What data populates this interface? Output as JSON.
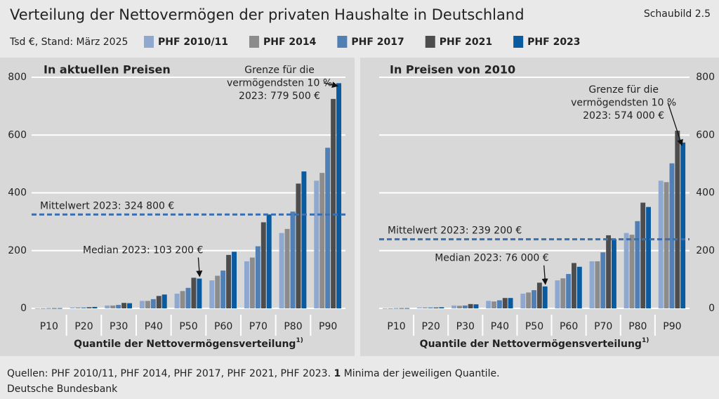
{
  "header": {
    "title": "Verteilung der Nettovermögen der privaten Haushalte in Deutschland",
    "figure_number": "Schaubild 2.5",
    "subtitle": "Tsd €, Stand: März 2025"
  },
  "chart_data": [
    {
      "type": "bar",
      "title": "In aktuellen Preisen",
      "x_label": "Quantile der Nettovermögensverteilung",
      "x_label_note": "1)",
      "categories": [
        "P10",
        "P20",
        "P30",
        "P40",
        "P50",
        "P60",
        "P70",
        "P80",
        "P90"
      ],
      "series": [
        {
          "name": "PHF 2010/11",
          "color": "#8fa8cf",
          "values": [
            0.5,
            3,
            10,
            26,
            51,
            97,
            163,
            261,
            442
          ]
        },
        {
          "name": "PHF 2014",
          "color": "#8c8c8c",
          "values": [
            0.5,
            3,
            10,
            26,
            60,
            113,
            176,
            275,
            469
          ]
        },
        {
          "name": "PHF 2017",
          "color": "#4f7fb5",
          "values": [
            1,
            3,
            12,
            32,
            71,
            131,
            215,
            335,
            556
          ]
        },
        {
          "name": "PHF 2021",
          "color": "#4d4d4d",
          "values": [
            1,
            4,
            19,
            43,
            106,
            185,
            298,
            432,
            725
          ]
        },
        {
          "name": "PHF 2023",
          "color": "#0a5aa0",
          "values": [
            1,
            5,
            18,
            48,
            103.2,
            196,
            325,
            474,
            779.5
          ]
        }
      ],
      "ylim": [
        0,
        800
      ],
      "yticks": [
        0,
        200,
        400,
        600,
        800
      ],
      "ytick_side": "left",
      "grid": true,
      "mean_line": {
        "value": 324.8,
        "label": "Mittelwert 2023: 324 800 €"
      },
      "median_annotation": {
        "value": 103.2,
        "label": "Median 2023: 103 200 €"
      },
      "top_annotation": {
        "value": 779.5,
        "lines": [
          "Grenze für die",
          "vermögendsten 10 %",
          "2023: 779 500 €"
        ]
      }
    },
    {
      "type": "bar",
      "title": "In Preisen von 2010",
      "x_label": "Quantile der Nettovermögensverteilung",
      "x_label_note": "1)",
      "categories": [
        "P10",
        "P20",
        "P30",
        "P40",
        "P50",
        "P60",
        "P70",
        "P80",
        "P90"
      ],
      "series": [
        {
          "name": "PHF 2010/11",
          "color": "#8fa8cf",
          "values": [
            0.5,
            3,
            10,
            26,
            51,
            97,
            163,
            261,
            442
          ]
        },
        {
          "name": "PHF 2014",
          "color": "#8c8c8c",
          "values": [
            0.5,
            3,
            9,
            24,
            55,
            104,
            163,
            255,
            437
          ]
        },
        {
          "name": "PHF 2017",
          "color": "#4f7fb5",
          "values": [
            1,
            3,
            10,
            28,
            63,
            119,
            194,
            302,
            502
          ]
        },
        {
          "name": "PHF 2021",
          "color": "#4d4d4d",
          "values": [
            1,
            3,
            15,
            36,
            89,
            157,
            253,
            366,
            615
          ]
        },
        {
          "name": "PHF 2023",
          "color": "#0a5aa0",
          "values": [
            1,
            4,
            14,
            36,
            76,
            144,
            240,
            351,
            574
          ]
        }
      ],
      "ylim": [
        0,
        800
      ],
      "yticks": [
        0,
        200,
        400,
        600,
        800
      ],
      "ytick_side": "right",
      "grid": true,
      "mean_line": {
        "value": 239.2,
        "label": "Mittelwert 2023: 239 200 €"
      },
      "median_annotation": {
        "value": 76,
        "label": "Median 2023: 76 000 €"
      },
      "top_annotation": {
        "value": 574,
        "lines": [
          "Grenze für die",
          "vermögendsten 10 %",
          "2023: 574 000 €"
        ]
      }
    }
  ],
  "footer": {
    "sources": "Quellen: PHF 2010/11, PHF 2014, PHF 2017, PHF 2021, PHF 2023.",
    "note_number": "1",
    "note_text": "Minima der jeweiligen Quantile.",
    "publisher": "Deutsche Bundesbank"
  }
}
